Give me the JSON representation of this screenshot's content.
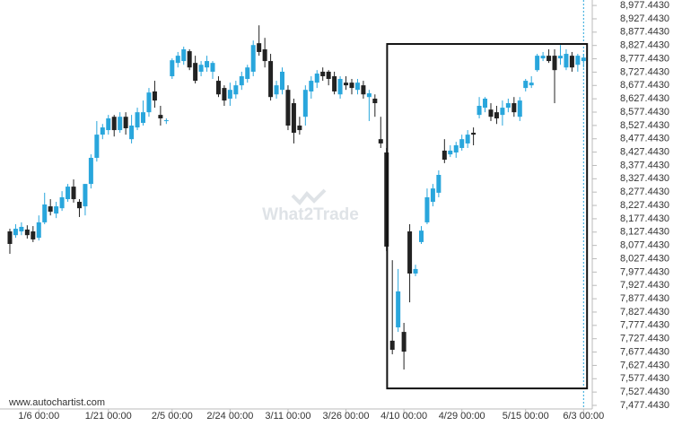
{
  "chart_data": {
    "type": "candlestick",
    "open": [
      8130,
      8116,
      8130,
      8137,
      8130,
      8106,
      8164,
      8224,
      8197,
      8217,
      8251,
      8298,
      8241,
      8224,
      8308,
      8406,
      8493,
      8510,
      8560,
      8510,
      8560,
      8476,
      8520,
      8537,
      8577,
      8655,
      8567,
      8547,
      8712,
      8762,
      8769,
      8806,
      8762,
      8729,
      8745,
      8729,
      8695,
      8668,
      8628,
      8644,
      8678,
      8702,
      8729,
      8836,
      8813,
      8769,
      8644,
      8661,
      8661,
      8611,
      8527,
      8560,
      8655,
      8688,
      8729,
      8729,
      8712,
      8644,
      8688,
      8688,
      8661,
      8678,
      8634,
      8628,
      8476,
      8426,
      7720,
      7770,
      7753,
      8130,
      7972,
      8090,
      8164,
      8241,
      8275,
      8433,
      8419,
      8426,
      8443,
      8460,
      8500,
      8567,
      8594,
      8587,
      8577,
      8567,
      8594,
      8611,
      8560,
      8668,
      8678,
      8735,
      8779,
      8789,
      8789,
      8779,
      8745,
      8789,
      8755,
      8769
    ],
    "high": [
      8140,
      8157,
      8164,
      8153,
      8150,
      8190,
      8275,
      8251,
      8241,
      8281,
      8308,
      8325,
      8251,
      8308,
      8419,
      8544,
      8533,
      8567,
      8567,
      8577,
      8577,
      8567,
      8594,
      8621,
      8668,
      8695,
      8601,
      8554,
      8779,
      8803,
      8823,
      8813,
      8789,
      8769,
      8789,
      8769,
      8712,
      8678,
      8688,
      8695,
      8729,
      8755,
      8846,
      8903,
      8856,
      8796,
      8695,
      8745,
      8678,
      8628,
      8560,
      8678,
      8712,
      8735,
      8745,
      8735,
      8729,
      8712,
      8712,
      8702,
      8702,
      8695,
      8661,
      8644,
      8560,
      8443,
      8022,
      7989,
      7787,
      8157,
      8005,
      8150,
      8291,
      8308,
      8359,
      8476,
      8453,
      8466,
      8493,
      8510,
      8520,
      8634,
      8634,
      8611,
      8601,
      8621,
      8628,
      8634,
      8634,
      8702,
      8712,
      8796,
      8803,
      8813,
      8813,
      8829,
      8813,
      8803,
      8796,
      8796
    ],
    "low": [
      8046,
      8106,
      8116,
      8103,
      8090,
      8096,
      8157,
      8190,
      8180,
      8207,
      8241,
      8238,
      8184,
      8190,
      8291,
      8392,
      8476,
      8493,
      8486,
      8500,
      8493,
      8460,
      8510,
      8527,
      8560,
      8594,
      8527,
      8533,
      8702,
      8745,
      8755,
      8735,
      8685,
      8712,
      8729,
      8702,
      8634,
      8601,
      8601,
      8628,
      8661,
      8688,
      8712,
      8789,
      8745,
      8621,
      8628,
      8644,
      8510,
      8460,
      8493,
      8527,
      8628,
      8668,
      8695,
      8678,
      8644,
      8628,
      8661,
      8644,
      8644,
      8628,
      8544,
      8560,
      8443,
      8056,
      7669,
      7753,
      7612,
      7864,
      7962,
      8083,
      8157,
      8224,
      8258,
      8386,
      8409,
      8406,
      8433,
      8443,
      8453,
      8554,
      8577,
      8544,
      8533,
      8527,
      8577,
      8560,
      8544,
      8655,
      8668,
      8729,
      8769,
      8762,
      8611,
      8755,
      8735,
      8729,
      8729,
      8745
    ],
    "close": [
      8083,
      8140,
      8147,
      8116,
      8100,
      8164,
      8231,
      8204,
      8224,
      8258,
      8298,
      8251,
      8217,
      8308,
      8406,
      8493,
      8520,
      8554,
      8510,
      8560,
      8517,
      8527,
      8577,
      8577,
      8651,
      8621,
      8554,
      8547,
      8772,
      8789,
      8813,
      8745,
      8695,
      8755,
      8769,
      8762,
      8644,
      8621,
      8661,
      8678,
      8712,
      8745,
      8829,
      8803,
      8769,
      8634,
      8678,
      8729,
      8527,
      8500,
      8510,
      8661,
      8695,
      8722,
      8712,
      8702,
      8655,
      8702,
      8678,
      8668,
      8688,
      8644,
      8648,
      8611,
      8460,
      8073,
      7686,
      7905,
      7679,
      7972,
      7989,
      8133,
      8258,
      8291,
      8342,
      8399,
      8433,
      8453,
      8476,
      8493,
      8493,
      8601,
      8628,
      8560,
      8554,
      8594,
      8611,
      8577,
      8621,
      8695,
      8688,
      8789,
      8789,
      8769,
      8735,
      8789,
      8796,
      8745,
      8789,
      8782
    ],
    "up_color": "#29a6dc",
    "down_color": "#222222",
    "xlim": [
      -1.7,
      100.5
    ],
    "xticks": [
      {
        "value": 5,
        "label": "1/6 00:00"
      },
      {
        "value": 17,
        "label": "1/21 00:00"
      },
      {
        "value": 28,
        "label": "2/5 00:00"
      },
      {
        "value": 38,
        "label": "2/24 00:00"
      },
      {
        "value": 48,
        "label": "3/11 00:00"
      },
      {
        "value": 58,
        "label": "3/26 00:00"
      },
      {
        "value": 68,
        "label": "4/10 00:00"
      },
      {
        "value": 78,
        "label": "4/29 00:00"
      },
      {
        "value": 89,
        "label": "5/15 00:00"
      },
      {
        "value": 99,
        "label": "6/3 00:00"
      }
    ],
    "ylim": [
      7464,
      8998
    ],
    "yticks": [
      {
        "value": 7477.443,
        "label": "7,477.4430"
      },
      {
        "value": 7527.443,
        "label": "7,527.4430"
      },
      {
        "value": 7577.443,
        "label": "7,577.4430"
      },
      {
        "value": 7627.443,
        "label": "7,627.4430"
      },
      {
        "value": 7677.443,
        "label": "7,677.4430"
      },
      {
        "value": 7727.443,
        "label": "7,727.4430"
      },
      {
        "value": 7777.443,
        "label": "7,777.4430"
      },
      {
        "value": 7827.443,
        "label": "7,827.4430"
      },
      {
        "value": 7877.443,
        "label": "7,877.4430"
      },
      {
        "value": 7927.443,
        "label": "7,927.4430"
      },
      {
        "value": 7977.443,
        "label": "7,977.4430"
      },
      {
        "value": 8027.443,
        "label": "8,027.4430"
      },
      {
        "value": 8077.443,
        "label": "8,077.4430"
      },
      {
        "value": 8127.443,
        "label": "8,127.4430"
      },
      {
        "value": 8177.443,
        "label": "8,177.4430"
      },
      {
        "value": 8227.443,
        "label": "8,227.4430"
      },
      {
        "value": 8277.443,
        "label": "8,277.4430"
      },
      {
        "value": 8327.443,
        "label": "8,327.4430"
      },
      {
        "value": 8377.443,
        "label": "8,377.4430"
      },
      {
        "value": 8427.443,
        "label": "8,427.4430"
      },
      {
        "value": 8477.443,
        "label": "8,477.4430"
      },
      {
        "value": 8527.443,
        "label": "8,527.4430"
      },
      {
        "value": 8577.443,
        "label": "8,577.4430"
      },
      {
        "value": 8627.443,
        "label": "8,627.4430"
      },
      {
        "value": 8677.443,
        "label": "8,677.4430"
      },
      {
        "value": 8727.443,
        "label": "8,727.4430"
      },
      {
        "value": 8777.443,
        "label": "8,777.4430"
      },
      {
        "value": 8827.443,
        "label": "8,827.4430"
      },
      {
        "value": 8877.443,
        "label": "8,877.4430"
      },
      {
        "value": 8927.443,
        "label": "8,927.4430"
      },
      {
        "value": 8977.443,
        "label": "8,977.4430"
      }
    ],
    "highlight_box": {
      "x": [
        65.1,
        99.6
      ],
      "y": [
        7541,
        8833
      ]
    }
  },
  "watermark": "What2Trade",
  "source": "www.autochartist.com"
}
